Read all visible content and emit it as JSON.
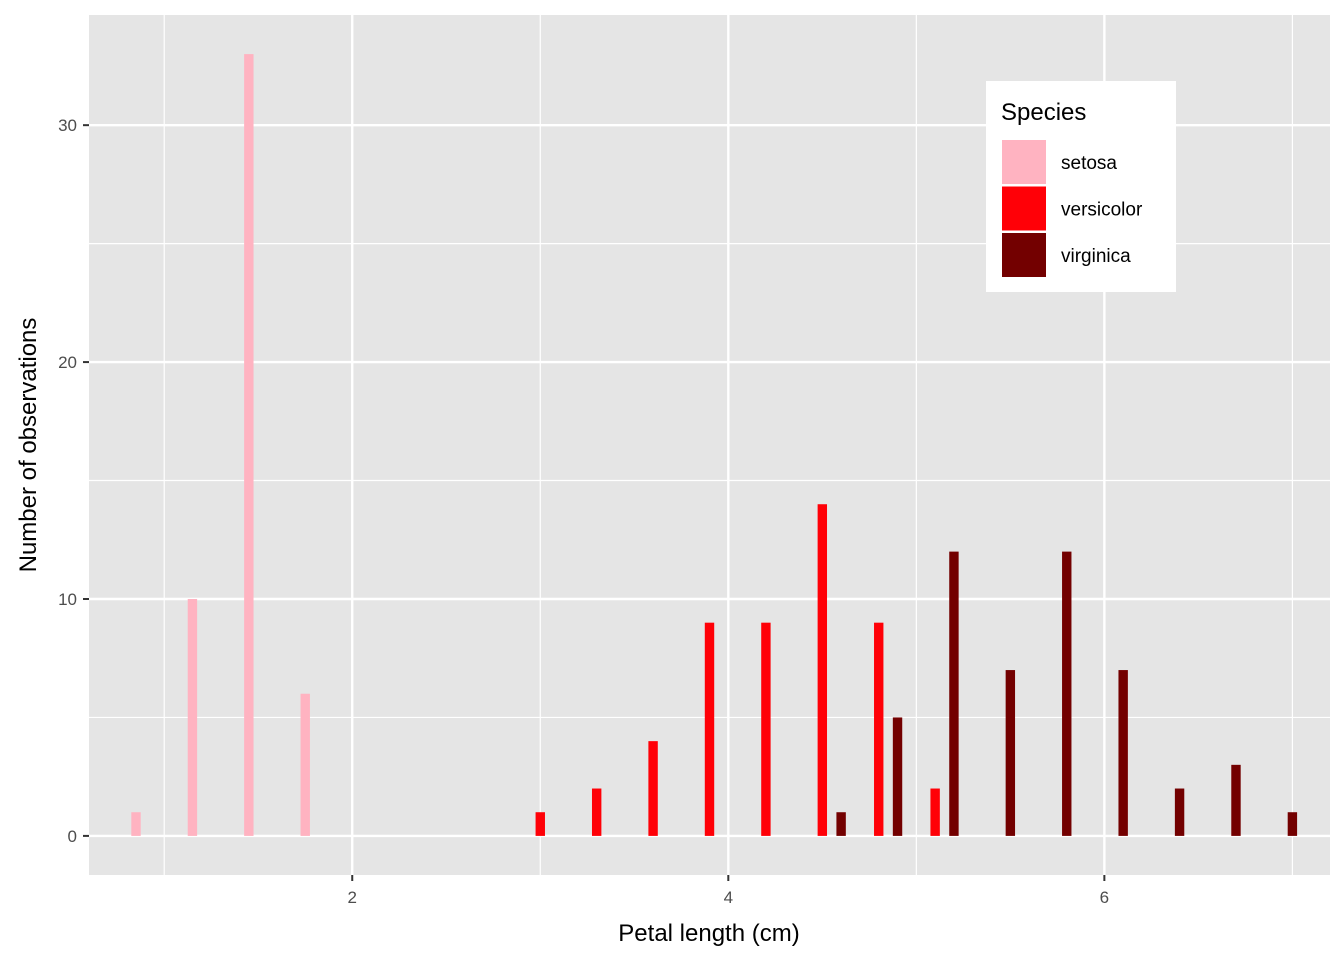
{
  "chart_data": {
    "type": "bar",
    "xlabel": "Petal length (cm)",
    "ylabel": "Number of observations",
    "xlim": [
      0.6,
      7.2
    ],
    "ylim": [
      -1.65,
      34.65
    ],
    "x_ticks": [
      2,
      4,
      6
    ],
    "y_ticks": [
      0,
      10,
      20,
      30
    ],
    "grid": true,
    "legend": {
      "title": "Species",
      "position": "top-right",
      "entries": [
        "setosa",
        "versicolor",
        "virginica"
      ]
    },
    "series": [
      {
        "name": "setosa",
        "color": "#FFB3C1",
        "x": [
          0.85,
          1.15,
          1.45,
          1.75
        ],
        "values": [
          1,
          10,
          33,
          6
        ]
      },
      {
        "name": "versicolor",
        "color": "#FF0007",
        "x": [
          3.0,
          3.3,
          3.6,
          3.9,
          4.2,
          4.5,
          4.8,
          5.1
        ],
        "values": [
          1,
          2,
          4,
          9,
          9,
          14,
          9,
          2
        ]
      },
      {
        "name": "virginica",
        "color": "#730000",
        "x": [
          4.6,
          4.9,
          5.2,
          5.5,
          5.8,
          6.1,
          6.4,
          6.7,
          7.0
        ],
        "values": [
          1,
          5,
          12,
          7,
          12,
          7,
          2,
          3,
          1
        ]
      }
    ]
  }
}
